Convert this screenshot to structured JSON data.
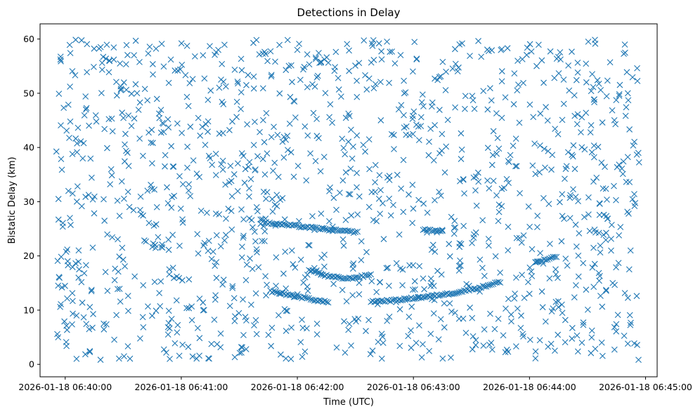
{
  "chart_data": {
    "type": "scatter",
    "title": "Detections in Delay",
    "xlabel": "Time (UTC)",
    "ylabel": "Bistatic Delay (km)",
    "marker": "x",
    "color": "#1f77b4",
    "grid": false,
    "legend": "none",
    "xlim": [
      "2026-01-18 06:39:47",
      "2026-01-18 06:45:06"
    ],
    "ylim": [
      -2.3,
      62.8
    ],
    "x_ticks": [
      "2026-01-18 06:40:00",
      "2026-01-18 06:41:00",
      "2026-01-18 06:42:00",
      "2026-01-18 06:43:00",
      "2026-01-18 06:44:00",
      "2026-01-18 06:45:00"
    ],
    "y_ticks": [
      0,
      10,
      20,
      30,
      40,
      50,
      60
    ],
    "background_detections": {
      "description_of_sampling": "dense random clutter between 1 and 60 km across 06:39:55 to 06:44:57",
      "count": 1300,
      "time_start": "2026-01-18 06:39:55",
      "time_end": "2026-01-18 06:44:57",
      "delay_min": 0.8,
      "delay_max": 59.9
    },
    "tracks": [
      {
        "points": [
          {
            "t": "2026-01-18 06:41:43",
            "delay": 26.1
          },
          {
            "t": "2026-01-18 06:41:52",
            "delay": 25.8
          },
          {
            "t": "2026-01-18 06:42:00",
            "delay": 25.5
          },
          {
            "t": "2026-01-18 06:42:10",
            "delay": 25.1
          },
          {
            "t": "2026-01-18 06:42:20",
            "delay": 24.7
          },
          {
            "t": "2026-01-18 06:42:30",
            "delay": 24.4
          }
        ]
      },
      {
        "points": [
          {
            "t": "2026-01-18 06:41:46",
            "delay": 13.5
          },
          {
            "t": "2026-01-18 06:41:56",
            "delay": 12.8
          },
          {
            "t": "2026-01-18 06:42:06",
            "delay": 12.1
          },
          {
            "t": "2026-01-18 06:42:16",
            "delay": 11.4
          }
        ]
      },
      {
        "points": [
          {
            "t": "2026-01-18 06:42:06",
            "delay": 17.5
          },
          {
            "t": "2026-01-18 06:42:16",
            "delay": 16.2
          },
          {
            "t": "2026-01-18 06:42:26",
            "delay": 15.8
          },
          {
            "t": "2026-01-18 06:42:35",
            "delay": 16.3
          },
          {
            "t": "2026-01-18 06:42:38",
            "delay": 16.6
          }
        ]
      },
      {
        "points": [
          {
            "t": "2026-01-18 06:42:38",
            "delay": 11.6
          },
          {
            "t": "2026-01-18 06:42:50",
            "delay": 11.8
          },
          {
            "t": "2026-01-18 06:43:05",
            "delay": 12.4
          },
          {
            "t": "2026-01-18 06:43:20",
            "delay": 13.1
          },
          {
            "t": "2026-01-18 06:43:35",
            "delay": 14.2
          },
          {
            "t": "2026-01-18 06:43:44",
            "delay": 15.2
          }
        ]
      },
      {
        "points": [
          {
            "t": "2026-01-18 06:43:05",
            "delay": 24.8
          },
          {
            "t": "2026-01-18 06:43:15",
            "delay": 24.6
          }
        ]
      },
      {
        "points": [
          {
            "t": "2026-01-18 06:44:03",
            "delay": 18.8
          },
          {
            "t": "2026-01-18 06:44:14",
            "delay": 19.8
          }
        ]
      }
    ]
  }
}
